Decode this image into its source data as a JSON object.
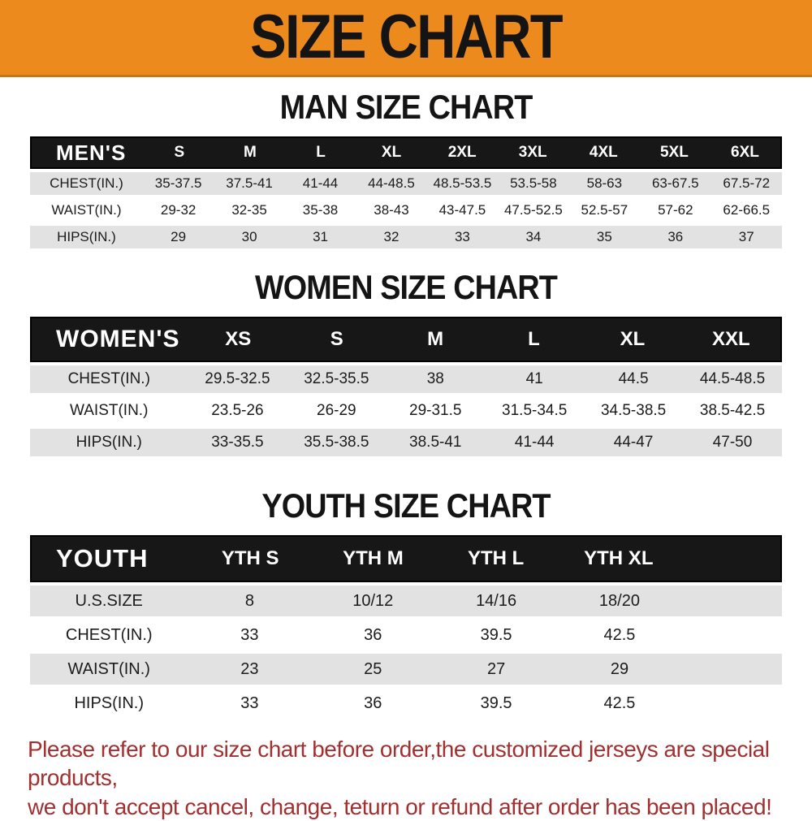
{
  "banner": {
    "title": "SIZE CHART"
  },
  "colors": {
    "banner_bg": "#EC8A1E",
    "table_header_bg": "#171717",
    "row_gray": "#E2E2E2",
    "footer_red": "#A33030"
  },
  "chart_data": [
    {
      "type": "table",
      "title": "MAN SIZE CHART",
      "label": "MEN'S",
      "columns": [
        "S",
        "M",
        "L",
        "XL",
        "2XL",
        "3XL",
        "4XL",
        "5XL",
        "6XL"
      ],
      "rows": [
        {
          "label": "CHEST(IN.)",
          "values": [
            "35-37.5",
            "37.5-41",
            "41-44",
            "44-48.5",
            "48.5-53.5",
            "53.5-58",
            "58-63",
            "63-67.5",
            "67.5-72"
          ]
        },
        {
          "label": "WAIST(IN.)",
          "values": [
            "29-32",
            "32-35",
            "35-38",
            "38-43",
            "43-47.5",
            "47.5-52.5",
            "52.5-57",
            "57-62",
            "62-66.5"
          ]
        },
        {
          "label": "HIPS(IN.)",
          "values": [
            "29",
            "30",
            "31",
            "32",
            "33",
            "34",
            "35",
            "36",
            "37"
          ]
        }
      ]
    },
    {
      "type": "table",
      "title": "WOMEN SIZE CHART",
      "label": "WOMEN'S",
      "columns": [
        "XS",
        "S",
        "M",
        "L",
        "XL",
        "XXL"
      ],
      "rows": [
        {
          "label": "CHEST(IN.)",
          "values": [
            "29.5-32.5",
            "32.5-35.5",
            "38",
            "41",
            "44.5",
            "44.5-48.5"
          ]
        },
        {
          "label": "WAIST(IN.)",
          "values": [
            "23.5-26",
            "26-29",
            "29-31.5",
            "31.5-34.5",
            "34.5-38.5",
            "38.5-42.5"
          ]
        },
        {
          "label": "HIPS(IN.)",
          "values": [
            "33-35.5",
            "35.5-38.5",
            "38.5-41",
            "41-44",
            "44-47",
            "47-50"
          ]
        }
      ]
    },
    {
      "type": "table",
      "title": "YOUTH SIZE CHART",
      "label": "YOUTH",
      "columns": [
        "YTH S",
        "YTH M",
        "YTH L",
        "YTH XL"
      ],
      "rows": [
        {
          "label": "U.S.SIZE",
          "values": [
            "8",
            "10/12",
            "14/16",
            "18/20"
          ]
        },
        {
          "label": "CHEST(IN.)",
          "values": [
            "33",
            "36",
            "39.5",
            "42.5"
          ]
        },
        {
          "label": "WAIST(IN.)",
          "values": [
            "23",
            "25",
            "27",
            "29"
          ]
        },
        {
          "label": "HIPS(IN.)",
          "values": [
            "33",
            "36",
            "39.5",
            "42.5"
          ]
        }
      ]
    }
  ],
  "footer": {
    "lines": [
      "Please refer to our size chart before order,the customized jerseys are special products,",
      "we don't accept cancel, change, teturn or refund after order has been placed!"
    ]
  }
}
